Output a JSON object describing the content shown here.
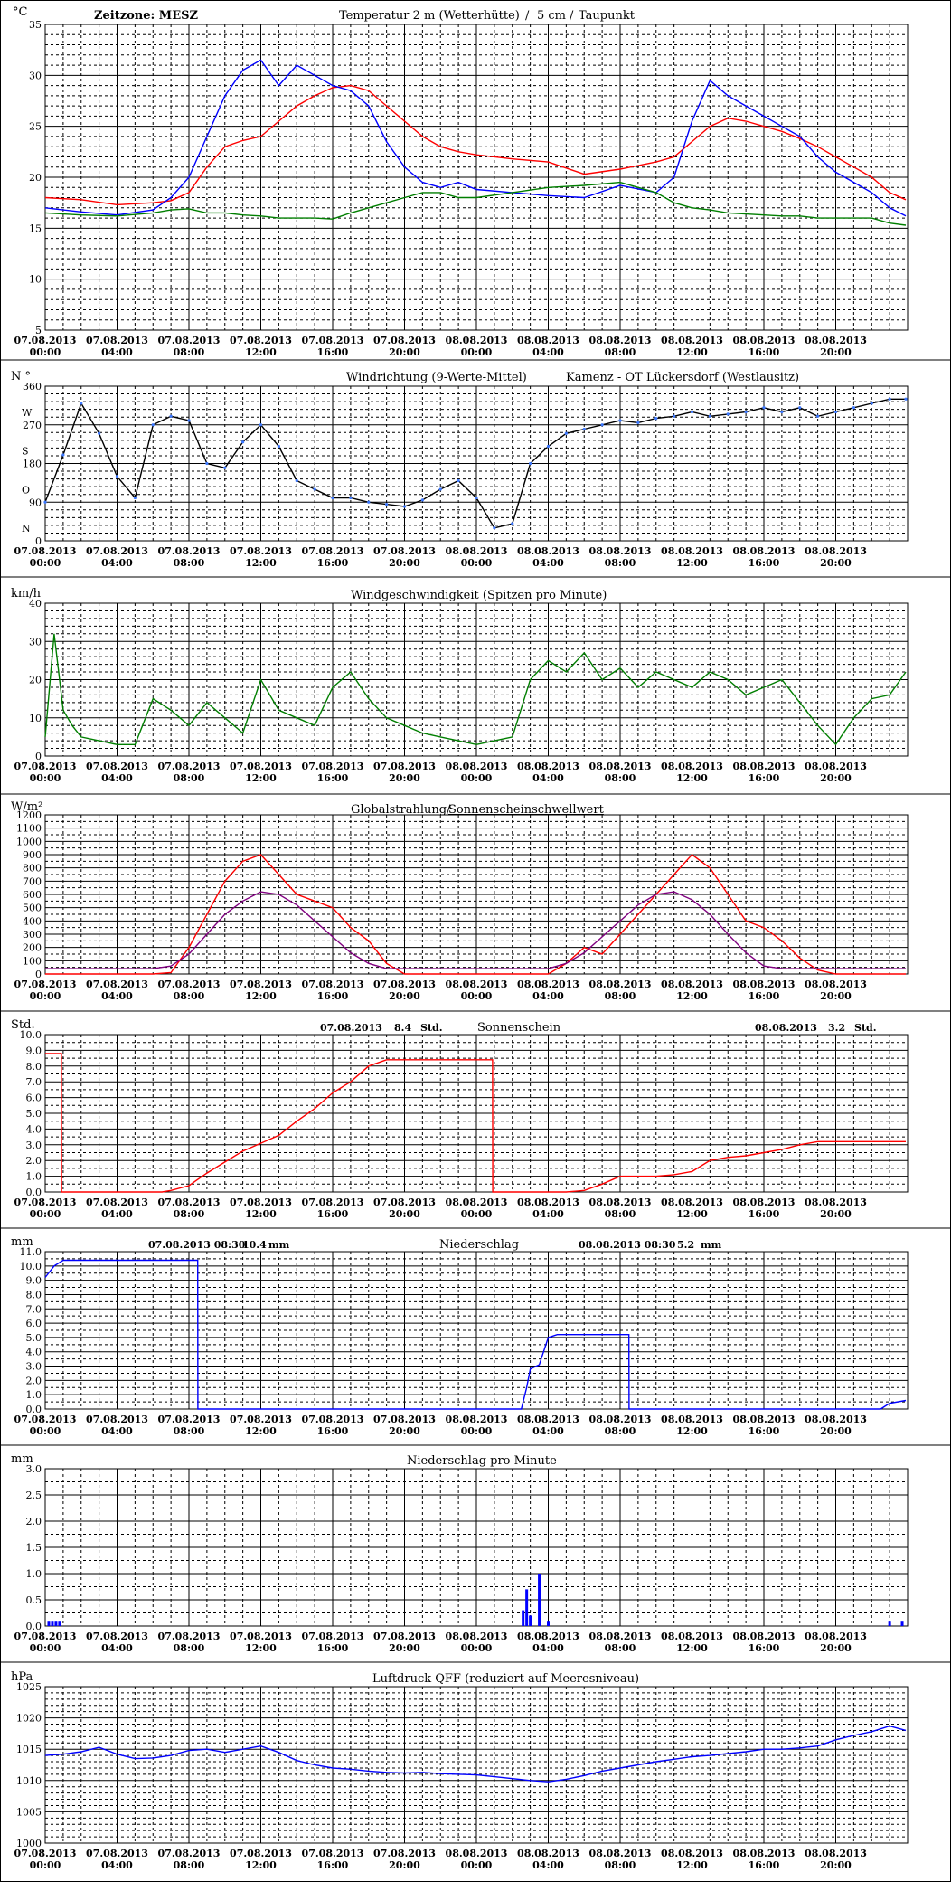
{
  "x_tick_labels": [
    [
      "07.08.2013",
      "00:00"
    ],
    [
      "07.08.2013",
      "04:00"
    ],
    [
      "07.08.2013",
      "08:00"
    ],
    [
      "07.08.2013",
      "12:00"
    ],
    [
      "07.08.2013",
      "16:00"
    ],
    [
      "07.08.2013",
      "20:00"
    ],
    [
      "08.08.2013",
      "00:00"
    ],
    [
      "08.08.2013",
      "04:00"
    ],
    [
      "08.08.2013",
      "08:00"
    ],
    [
      "08.08.2013",
      "12:00"
    ],
    [
      "08.08.2013",
      "16:00"
    ],
    [
      "08.08.2013",
      "20:00"
    ]
  ],
  "colors": {
    "red": "#ff0000",
    "blue": "#0000ff",
    "green": "#007f00",
    "lightblue": "#3c78ff",
    "navy": "#000000",
    "purple": "#800080"
  },
  "chart_data": [
    {
      "id": "temp",
      "type": "line",
      "unit": "°C",
      "header": {
        "zone": "Zeitzone: MESZ",
        "t2m": "Temperatur 2 m (Wetterhütte)",
        "sep": "/",
        "t5cm": "5 cm",
        "sep2": "/",
        "dew": "Taupunkt"
      },
      "ylim": [
        5,
        35
      ],
      "yticks": [
        5,
        10,
        15,
        20,
        25,
        30,
        35
      ],
      "grid": true,
      "x_hours": [
        0,
        2,
        4,
        6,
        7,
        8,
        9,
        10,
        11,
        12,
        13,
        14,
        15,
        16,
        17,
        18,
        19,
        20,
        21,
        22,
        23,
        24,
        26,
        28,
        30,
        32,
        34,
        35,
        36,
        37,
        38,
        39,
        40,
        41,
        42,
        43,
        44,
        45,
        46,
        47,
        47.9
      ],
      "series": [
        {
          "name": "Temperatur 2 m (Wetterhütte)",
          "color": "#ff0000",
          "values": [
            18.0,
            17.8,
            17.3,
            17.5,
            17.7,
            18.5,
            21.0,
            23.0,
            23.6,
            24.0,
            25.5,
            27.0,
            28.0,
            28.8,
            29.0,
            28.5,
            27.0,
            25.5,
            24.0,
            23.0,
            22.5,
            22.2,
            21.8,
            21.5,
            20.3,
            20.8,
            21.5,
            22.0,
            23.5,
            25.0,
            25.8,
            25.5,
            25.0,
            24.5,
            23.8,
            23.0,
            22.0,
            21.0,
            20.0,
            18.5,
            17.8
          ]
        },
        {
          "name": "5 cm",
          "color": "#0000ff",
          "values": [
            17.0,
            16.6,
            16.3,
            16.8,
            18.0,
            20.0,
            24.0,
            28.0,
            30.5,
            31.5,
            29.0,
            31.0,
            30.0,
            29.0,
            28.5,
            27.0,
            23.5,
            21.0,
            19.5,
            19.0,
            19.5,
            18.8,
            18.5,
            18.2,
            18.0,
            19.2,
            18.5,
            20.0,
            25.5,
            29.5,
            28.0,
            27.0,
            26.0,
            25.0,
            24.0,
            22.0,
            20.5,
            19.5,
            18.5,
            17.0,
            16.2
          ]
        },
        {
          "name": "Taupunkt",
          "color": "#007f00",
          "values": [
            16.5,
            16.3,
            16.2,
            16.5,
            16.8,
            16.9,
            16.5,
            16.5,
            16.3,
            16.2,
            16.0,
            16.0,
            16.0,
            15.9,
            16.5,
            17.0,
            17.5,
            18.0,
            18.5,
            18.5,
            18.0,
            18.0,
            18.5,
            19.0,
            19.2,
            19.5,
            18.5,
            17.5,
            17.0,
            16.8,
            16.5,
            16.4,
            16.3,
            16.2,
            16.2,
            16.0,
            16.0,
            16.0,
            16.0,
            15.5,
            15.3
          ]
        }
      ]
    },
    {
      "id": "winddir",
      "type": "line",
      "title_left": "Windrichtung (9-Werte-Mittel)",
      "title_right": "Kamenz - OT Lückersdorf (Westlausitz)",
      "unit": "N °",
      "ylim": [
        0,
        360
      ],
      "yticks": [
        0,
        90,
        180,
        270,
        360
      ],
      "compass": [
        "N",
        "O",
        "S",
        "W",
        "N"
      ],
      "grid": true,
      "x_hours": [
        0,
        1,
        2,
        3,
        4,
        5,
        6,
        7,
        8,
        9,
        10,
        11,
        12,
        13,
        14,
        15,
        16,
        17,
        18,
        19,
        20,
        21,
        22,
        23,
        24,
        25,
        26,
        27,
        28,
        29,
        30,
        31,
        32,
        33,
        34,
        35,
        36,
        37,
        38,
        39,
        40,
        41,
        42,
        43,
        44,
        45,
        46,
        47,
        47.9
      ],
      "series": [
        {
          "name": "Windrichtung (9-Werte-Mittel)",
          "color": "#000000",
          "values": [
            90,
            200,
            320,
            250,
            150,
            100,
            270,
            290,
            280,
            180,
            170,
            230,
            270,
            220,
            140,
            120,
            100,
            100,
            90,
            85,
            80,
            95,
            120,
            140,
            100,
            30,
            40,
            180,
            220,
            250,
            260,
            270,
            280,
            275,
            285,
            290,
            300,
            290,
            295,
            300,
            310,
            300,
            310,
            290,
            300,
            310,
            320,
            330,
            330
          ]
        }
      ]
    },
    {
      "id": "windspeed",
      "type": "line",
      "title": "Windgeschwindigkeit (Spitzen pro Minute)",
      "unit": "km/h",
      "ylim": [
        0,
        40
      ],
      "yticks": [
        0,
        10,
        20,
        30,
        40
      ],
      "grid": true,
      "x_hours": [
        0,
        0.5,
        1,
        1.5,
        2,
        3,
        4,
        5,
        6,
        7,
        8,
        9,
        10,
        11,
        12,
        13,
        14,
        15,
        16,
        17,
        18,
        19,
        20,
        21,
        22,
        23,
        24,
        25,
        26,
        27,
        28,
        29,
        30,
        31,
        32,
        33,
        34,
        35,
        36,
        37,
        38,
        39,
        40,
        41,
        42,
        43,
        44,
        45,
        46,
        47,
        47.9
      ],
      "series": [
        {
          "name": "Windgeschwindigkeit",
          "color": "#007f00",
          "values": [
            5,
            32,
            12,
            8,
            5,
            4,
            3,
            3,
            15,
            12,
            8,
            14,
            10,
            6,
            20,
            12,
            10,
            8,
            18,
            22,
            15,
            10,
            8,
            6,
            5,
            4,
            3,
            4,
            5,
            20,
            25,
            22,
            27,
            20,
            23,
            18,
            22,
            20,
            18,
            22,
            20,
            16,
            18,
            20,
            14,
            8,
            3,
            10,
            15,
            16,
            22
          ]
        }
      ]
    },
    {
      "id": "radiation",
      "type": "line",
      "title": "Globalstrahlung/",
      "title2": "Sonnenscheinschwellwert",
      "unit": "W/m²",
      "ylim": [
        0,
        1200
      ],
      "yticks": [
        0,
        100,
        200,
        300,
        400,
        500,
        600,
        700,
        800,
        900,
        1000,
        1100,
        1200
      ],
      "grid": true,
      "x_hours": [
        0,
        5,
        6,
        7,
        8,
        9,
        10,
        11,
        12,
        13,
        14,
        15,
        16,
        17,
        18,
        19,
        20,
        21,
        22,
        24,
        27,
        28,
        29,
        30,
        31,
        32,
        33,
        34,
        35,
        36,
        37,
        38,
        39,
        40,
        41,
        42,
        43,
        44,
        45,
        46,
        47.9
      ],
      "series": [
        {
          "name": "Globalstrahlung",
          "color": "#ff0000",
          "values": [
            0,
            0,
            0,
            10,
            200,
            450,
            700,
            850,
            900,
            750,
            600,
            550,
            500,
            350,
            250,
            80,
            0,
            0,
            0,
            0,
            0,
            0,
            80,
            200,
            150,
            300,
            450,
            600,
            750,
            900,
            800,
            600,
            400,
            350,
            250,
            120,
            30,
            0,
            0,
            0,
            0
          ]
        },
        {
          "name": "Sonnenscheinschwellwert",
          "color": "#800080",
          "values": [
            40,
            40,
            40,
            60,
            150,
            300,
            450,
            550,
            620,
            600,
            520,
            400,
            280,
            160,
            80,
            40,
            40,
            40,
            40,
            40,
            40,
            40,
            80,
            160,
            280,
            400,
            520,
            600,
            620,
            560,
            450,
            300,
            160,
            60,
            40,
            40,
            40,
            40,
            40,
            40,
            40
          ]
        }
      ]
    },
    {
      "id": "sunshine",
      "type": "line",
      "title": "Sonnenschein",
      "day1_label": "07.08.2013",
      "day1_value": "8.4",
      "day1_unit": "Std.",
      "day2_label": "08.08.2013",
      "day2_value": "3.2",
      "day2_unit": "Std.",
      "unit": "Std.",
      "ylim": [
        0,
        10
      ],
      "yticks": [
        0.0,
        1.0,
        2.0,
        3.0,
        4.0,
        5.0,
        6.0,
        7.0,
        8.0,
        9.0,
        10.0
      ],
      "grid": true,
      "x_hours": [
        0,
        0.9,
        0.91,
        6.5,
        7,
        8,
        9,
        10,
        11,
        12,
        13,
        14,
        15,
        16,
        17,
        18,
        19,
        20,
        21,
        22,
        23,
        24.9,
        24.91,
        29,
        30,
        31,
        32,
        33,
        34,
        35,
        36,
        37,
        38,
        39,
        40,
        41,
        42,
        43,
        44,
        45,
        46,
        47,
        47.9
      ],
      "series": [
        {
          "name": "Sonnenschein",
          "color": "#ff0000",
          "values": [
            8.8,
            8.8,
            0,
            0,
            0.1,
            0.4,
            1.2,
            1.9,
            2.6,
            3.1,
            3.6,
            4.5,
            5.3,
            6.3,
            7.0,
            8.0,
            8.4,
            8.4,
            8.4,
            8.4,
            8.4,
            8.4,
            0,
            0,
            0.1,
            0.5,
            1.0,
            1.0,
            1.0,
            1.1,
            1.3,
            2.0,
            2.2,
            2.3,
            2.5,
            2.7,
            3.0,
            3.2,
            3.2,
            3.2,
            3.2,
            3.2,
            3.2
          ]
        }
      ]
    },
    {
      "id": "precip",
      "type": "line",
      "title": "Niederschlag",
      "day1_label": "07.08.2013 08:30",
      "day1_value": "10.4",
      "day1_unit": "mm",
      "day2_label": "08.08.2013 08:30",
      "day2_value": "5.2",
      "day2_unit": "mm",
      "unit": "mm",
      "ylim": [
        0,
        11
      ],
      "yticks": [
        0.0,
        1.0,
        2.0,
        3.0,
        4.0,
        5.0,
        6.0,
        7.0,
        8.0,
        9.0,
        10.0,
        11.0
      ],
      "grid": true,
      "x_hours": [
        0,
        0.5,
        1,
        8.49,
        8.5,
        26.5,
        26.8,
        27,
        27.5,
        28,
        28.5,
        32.49,
        32.5,
        46.5,
        47,
        47.9
      ],
      "series": [
        {
          "name": "Niederschlag",
          "color": "#0000ff",
          "values": [
            9.2,
            10.0,
            10.4,
            10.4,
            0,
            0,
            1.5,
            2.8,
            3.1,
            5.0,
            5.2,
            5.2,
            0,
            0,
            0.4,
            0.6
          ]
        }
      ]
    },
    {
      "id": "precip_min",
      "type": "bar",
      "title": "Niederschlag pro Minute",
      "unit": "mm",
      "ylim": [
        0,
        3
      ],
      "yticks": [
        0.0,
        0.5,
        1.0,
        1.5,
        2.0,
        2.5,
        3.0
      ],
      "grid": true,
      "bars": [
        {
          "x": 0.2,
          "v": 0.1
        },
        {
          "x": 0.4,
          "v": 0.1
        },
        {
          "x": 0.6,
          "v": 0.1
        },
        {
          "x": 0.8,
          "v": 0.1
        },
        {
          "x": 26.6,
          "v": 0.3
        },
        {
          "x": 26.8,
          "v": 0.7
        },
        {
          "x": 27.0,
          "v": 0.2
        },
        {
          "x": 27.5,
          "v": 1.0
        },
        {
          "x": 28.0,
          "v": 0.1
        },
        {
          "x": 47.0,
          "v": 0.1
        },
        {
          "x": 47.7,
          "v": 0.1
        }
      ]
    },
    {
      "id": "pressure",
      "type": "line",
      "title": "Luftdruck QFF (reduziert auf Meeresniveau)",
      "unit": "hPa",
      "ylim": [
        1000,
        1025
      ],
      "yticks": [
        1000,
        1005,
        1010,
        1015,
        1020,
        1025
      ],
      "grid": true,
      "x_hours": [
        0,
        1,
        2,
        3,
        4,
        5,
        6,
        7,
        8,
        9,
        10,
        11,
        12,
        13,
        14,
        15,
        16,
        17,
        18,
        19,
        20,
        21,
        22,
        23,
        24,
        25,
        26,
        27,
        28,
        29,
        30,
        31,
        32,
        33,
        34,
        35,
        36,
        37,
        38,
        39,
        40,
        41,
        42,
        43,
        44,
        45,
        46,
        47,
        47.9
      ],
      "series": [
        {
          "name": "Luftdruck QFF",
          "color": "#0000ff",
          "values": [
            1014.0,
            1014.2,
            1014.6,
            1015.3,
            1014.2,
            1013.5,
            1013.6,
            1014.0,
            1014.8,
            1015.0,
            1014.5,
            1015.0,
            1015.5,
            1014.5,
            1013.2,
            1012.5,
            1012.0,
            1011.8,
            1011.5,
            1011.3,
            1011.2,
            1011.3,
            1011.1,
            1011.0,
            1010.9,
            1010.6,
            1010.3,
            1010.0,
            1009.8,
            1010.2,
            1010.8,
            1011.5,
            1012.0,
            1012.5,
            1013.0,
            1013.4,
            1013.8,
            1014.0,
            1014.3,
            1014.6,
            1015.0,
            1015.0,
            1015.2,
            1015.5,
            1016.5,
            1017.2,
            1017.8,
            1018.7,
            1018.0
          ]
        }
      ]
    }
  ]
}
